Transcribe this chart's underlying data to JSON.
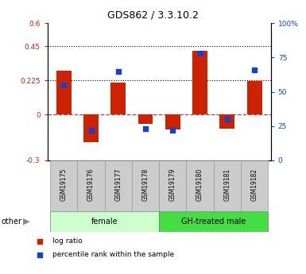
{
  "title": "GDS862 / 3.3.10.2",
  "samples": [
    "GSM19175",
    "GSM19176",
    "GSM19177",
    "GSM19178",
    "GSM19179",
    "GSM19180",
    "GSM19181",
    "GSM19182"
  ],
  "log_ratio": [
    0.29,
    -0.18,
    0.21,
    -0.06,
    -0.1,
    0.42,
    -0.09,
    0.22
  ],
  "percentile_rank": [
    55,
    22,
    65,
    23,
    22,
    78,
    30,
    66
  ],
  "ylim_left": [
    -0.3,
    0.6
  ],
  "ylim_right": [
    0,
    100
  ],
  "yticks_left": [
    -0.3,
    0,
    0.225,
    0.45,
    0.6
  ],
  "ytick_labels_left": [
    "-0.3",
    "0",
    "0.225",
    "0.45",
    "0.6"
  ],
  "yticks_right": [
    0,
    25,
    50,
    75,
    100
  ],
  "ytick_labels_right": [
    "0",
    "25",
    "50",
    "75",
    "100%"
  ],
  "hlines_dotted": [
    0.225,
    0.45
  ],
  "hline_dashed_color": "#cc3333",
  "bar_color": "#cc2200",
  "square_color": "#1144cc",
  "groups": [
    {
      "label": "female",
      "start": 0,
      "end": 4,
      "color": "#ccffcc"
    },
    {
      "label": "GH-treated male",
      "start": 4,
      "end": 8,
      "color": "#44dd44"
    }
  ],
  "legend_entries": [
    "log ratio",
    "percentile rank within the sample"
  ],
  "other_label": "other",
  "bar_width": 0.55,
  "tick_area_color": "#cccccc",
  "title_fontsize": 9
}
